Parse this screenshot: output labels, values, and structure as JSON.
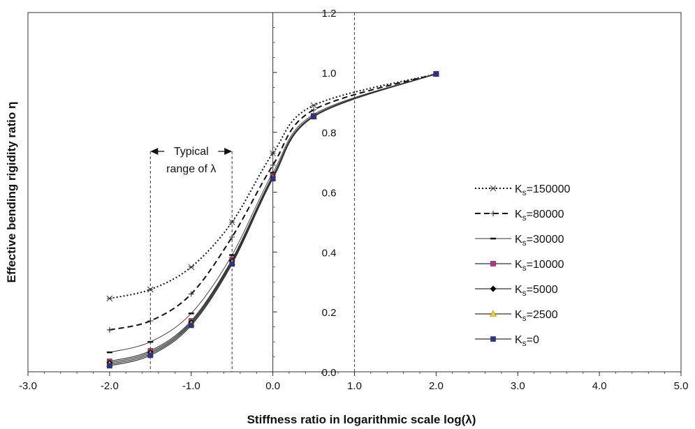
{
  "chart_data": {
    "type": "line",
    "title": "",
    "xlabel": "Stiffness ratio in logarithmic scale log(λ)",
    "ylabel": "Effective bending rigidity ratio η",
    "xlim": [
      -3.0,
      5.0
    ],
    "ylim": [
      0.0,
      1.2
    ],
    "x_ticks": [
      "-3.0",
      "-2.0",
      "-1.0",
      "0.0",
      "1.0",
      "2.0",
      "3.0",
      "4.0",
      "5.0"
    ],
    "y_ticks": [
      "0.0",
      "0.2",
      "0.4",
      "0.6",
      "0.8",
      "1.0",
      "1.2"
    ],
    "x": [
      -2.0,
      -1.5,
      -1.0,
      -0.5,
      0.0,
      0.5,
      2.0
    ],
    "series": [
      {
        "name": "Ks=150000",
        "label_main": "K",
        "label_sub": "s",
        "label_rest": "=150000",
        "style": "dotted",
        "marker": "asterisk",
        "color": "#222222",
        "values": [
          0.245,
          0.275,
          0.35,
          0.5,
          0.73,
          0.89,
          0.995
        ]
      },
      {
        "name": "Ks=80000",
        "label_main": "K",
        "label_sub": "s",
        "label_rest": "=80000",
        "style": "dashed",
        "marker": "plus",
        "color": "#222222",
        "values": [
          0.14,
          0.17,
          0.26,
          0.45,
          0.69,
          0.875,
          0.995
        ]
      },
      {
        "name": "Ks=30000",
        "label_main": "K",
        "label_sub": "s",
        "label_rest": "=30000",
        "style": "thin",
        "marker": "dash",
        "color": "#333333",
        "values": [
          0.065,
          0.1,
          0.195,
          0.39,
          0.665,
          0.86,
          0.995
        ]
      },
      {
        "name": "Ks=10000",
        "label_main": "K",
        "label_sub": "s",
        "label_rest": "=10000",
        "style": "solid",
        "marker": "square",
        "color": "#c03090",
        "values": [
          0.035,
          0.07,
          0.17,
          0.375,
          0.655,
          0.855,
          0.995
        ]
      },
      {
        "name": "Ks=5000",
        "label_main": "K",
        "label_sub": "s",
        "label_rest": "=5000",
        "style": "solid",
        "marker": "diamond",
        "color": "#000000",
        "values": [
          0.03,
          0.065,
          0.165,
          0.37,
          0.65,
          0.855,
          0.995
        ]
      },
      {
        "name": "Ks=2500",
        "label_main": "K",
        "label_sub": "s",
        "label_rest": "=2500",
        "style": "solid",
        "marker": "triangle",
        "color": "#f0d020",
        "values": [
          0.025,
          0.06,
          0.16,
          0.365,
          0.648,
          0.853,
          0.995
        ]
      },
      {
        "name": "Ks=0",
        "label_main": "K",
        "label_sub": "s",
        "label_rest": "=0",
        "style": "solid",
        "marker": "square",
        "color": "#2b2f9a",
        "values": [
          0.02,
          0.055,
          0.155,
          0.36,
          0.645,
          0.852,
          0.995
        ]
      }
    ],
    "annotation": {
      "line1": "Typical",
      "line2_prefix": "range of ",
      "line2_symbol": "λ",
      "range_x": [
        -1.5,
        -0.5
      ]
    },
    "reference_line_x": 1.0,
    "legend_position": "right",
    "grid": false
  }
}
